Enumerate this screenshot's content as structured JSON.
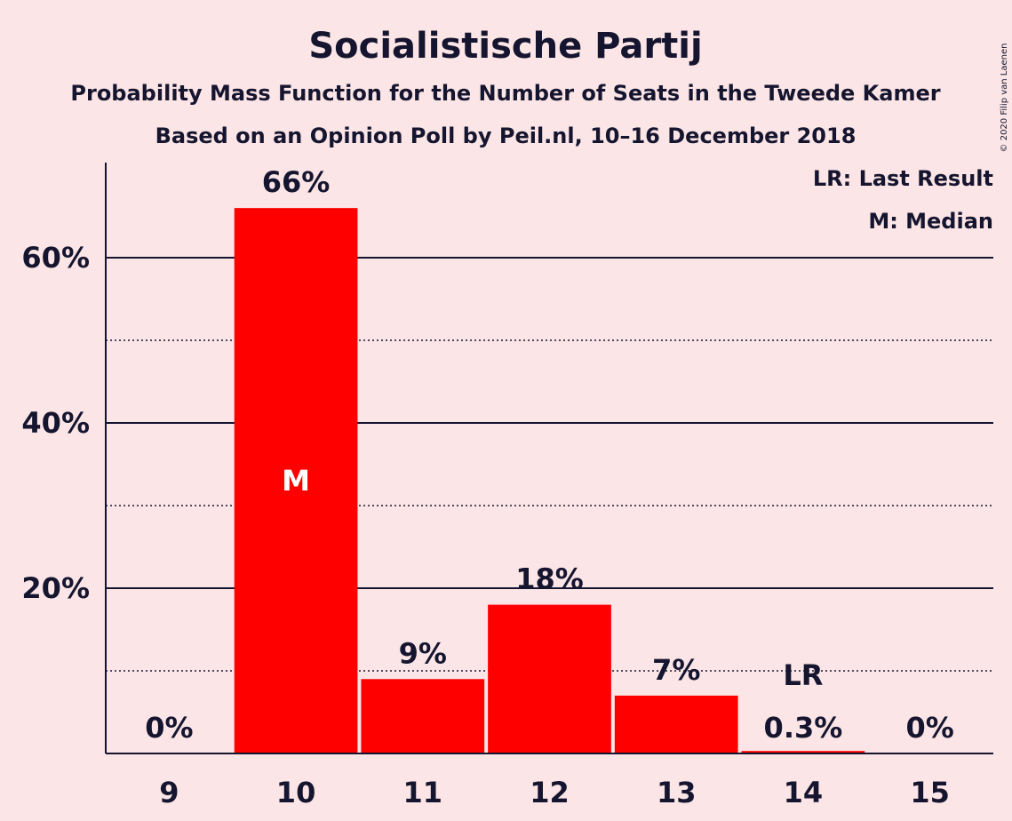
{
  "chart_data": {
    "type": "bar",
    "title": "Socialistische Partij",
    "subtitle_1": "Probability Mass Function for the Number of Seats in the Tweede Kamer",
    "subtitle_2": "Based on an Opinion Poll by Peil.nl, 10–16 December 2018",
    "categories": [
      "9",
      "10",
      "11",
      "12",
      "13",
      "14",
      "15"
    ],
    "values": [
      0,
      66,
      9,
      18,
      7,
      0.3,
      0
    ],
    "value_labels": [
      "0%",
      "66%",
      "9%",
      "18%",
      "7%",
      "0.3%",
      "0%"
    ],
    "y_ticks": [
      20,
      40,
      60
    ],
    "y_tick_labels": [
      "20%",
      "40%",
      "60%"
    ],
    "y_minor_ticks": [
      10,
      30,
      50
    ],
    "ylim": [
      0,
      71.5
    ],
    "bar_color": "#ff0000",
    "median_index": 1,
    "median_marker": "M",
    "last_result_index": 5,
    "last_result_marker": "LR",
    "legend": [
      "LR: Last Result",
      "M: Median"
    ],
    "legend_position": "top-right",
    "copyright": "© 2020 Filip van Laenen"
  }
}
